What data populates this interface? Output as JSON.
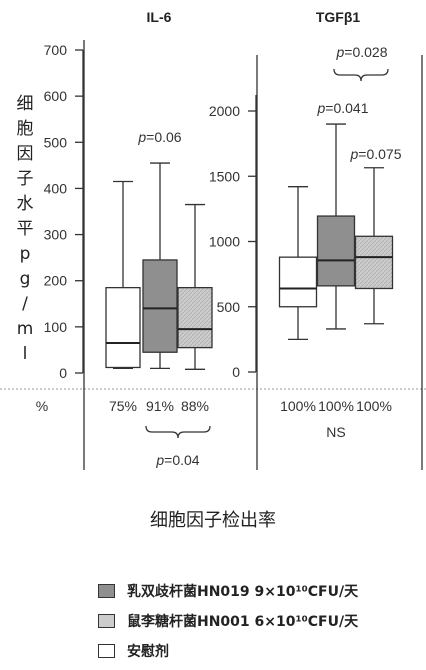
{
  "chart_data": [
    {
      "type": "box",
      "title": "IL-6",
      "ylabel": "细胞因子水平pg/ml",
      "ylim": [
        0,
        700
      ],
      "yticks": [
        0,
        100,
        200,
        300,
        400,
        500,
        600,
        700
      ],
      "groups": [
        {
          "name": "安慰剂",
          "whisker_low": 10,
          "q1": 12,
          "median": 65,
          "q3": 185,
          "whisker_high": 415,
          "detection_rate": "75%"
        },
        {
          "name": "乳双歧杆菌HN019 9×10¹⁰CFU/天",
          "whisker_low": 10,
          "q1": 45,
          "median": 140,
          "q3": 245,
          "whisker_high": 455,
          "detection_rate": "91%"
        },
        {
          "name": "鼠李糖杆菌HN001 6×10¹⁰CFU/天",
          "whisker_low": 8,
          "q1": 55,
          "median": 95,
          "q3": 185,
          "whisker_high": 365,
          "detection_rate": "88%"
        }
      ],
      "annotations": {
        "p_middle": "p=0.06",
        "p_rates": "p=0.04"
      },
      "rate_left_fragment": "%"
    },
    {
      "type": "box",
      "title": "TGFβ1",
      "ylim": [
        0,
        2400
      ],
      "yticks": [
        0,
        500,
        1000,
        1500,
        2000
      ],
      "groups": [
        {
          "name": "安慰剂",
          "whisker_low": 250,
          "q1": 500,
          "median": 640,
          "q3": 880,
          "whisker_high": 1420,
          "detection_rate": "100%"
        },
        {
          "name": "乳双歧杆菌HN019 9×10¹⁰CFU/天",
          "whisker_low": 330,
          "q1": 660,
          "median": 855,
          "q3": 1195,
          "whisker_high": 1900,
          "detection_rate": "100%"
        },
        {
          "name": "鼠李糖杆菌HN001 6×10¹⁰CFU/天",
          "whisker_low": 370,
          "q1": 640,
          "median": 880,
          "q3": 1040,
          "whisker_high": 1565,
          "detection_rate": "100%"
        }
      ],
      "annotations": {
        "p_bracket": "p=0.028",
        "p_middle": "p=0.041",
        "p_right": "p=0.075",
        "rates_note": "NS"
      }
    }
  ],
  "ylabel_chars": [
    "细",
    "胞",
    "因",
    "子",
    "水",
    "平",
    "p",
    "g",
    "/",
    "m",
    "l"
  ],
  "xcaption": "细胞因子检出率",
  "legend": [
    {
      "label": "乳双歧杆菌HN019 9×10¹⁰CFU/天",
      "color": "#8f8f8f"
    },
    {
      "label": "鼠李糖杆菌HN001 6×10¹⁰CFU/天",
      "color": "#cccccc"
    },
    {
      "label": "安慰剂",
      "color": "#ffffff"
    }
  ],
  "colors": {
    "placebo": "#ffffff",
    "hn019": "#8f8f8f",
    "hn001": "#cccccc",
    "axis": "#333333"
  }
}
